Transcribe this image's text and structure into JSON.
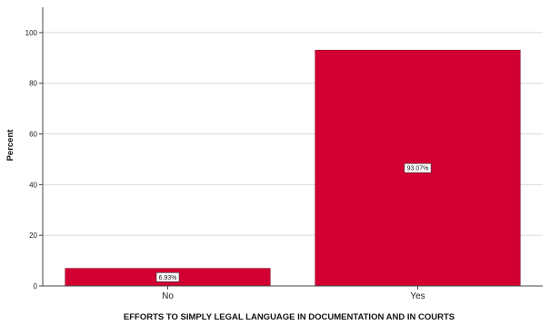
{
  "chart_data": {
    "type": "bar",
    "categories": [
      "No",
      "Yes"
    ],
    "values": [
      6.93,
      93.07
    ],
    "data_labels": [
      "6.93%",
      "93.07%"
    ],
    "xlabel": "EFFORTS TO SIMPLY LEGAL LANGUAGE IN DOCUMENTATION AND IN COURTS",
    "ylabel": "Percent",
    "ylim": [
      0,
      110
    ],
    "yticks": [
      0,
      20,
      40,
      60,
      80,
      100
    ],
    "grid": true,
    "bar_color": "#d20032",
    "grid_color": "#d9d9d9",
    "legend": "none"
  }
}
